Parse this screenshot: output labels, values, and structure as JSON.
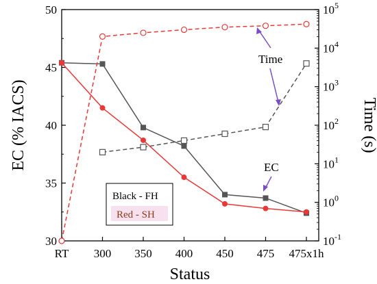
{
  "chart_data": {
    "type": "line",
    "categories": [
      "RT",
      "300",
      "350",
      "400",
      "450",
      "475",
      "475x1h"
    ],
    "xlabel": "Status",
    "ylabel": "EC (% IACS)",
    "y2label": "Time (s)",
    "ylim": [
      30,
      50
    ],
    "yticks": [
      30,
      35,
      40,
      45,
      50
    ],
    "y2scale": "log",
    "y2lim": [
      0.1,
      100000
    ],
    "y2ticks": [
      "10-1",
      "100",
      "101",
      "102",
      "103",
      "104",
      "105"
    ],
    "y2tick_exponents": [
      -1,
      0,
      1,
      2,
      3,
      4,
      5
    ],
    "grid": false,
    "series": [
      {
        "axis": "left",
        "color": "#555555",
        "marker": "filled-square",
        "dash": false,
        "values": [
          45.4,
          45.3,
          39.8,
          38.2,
          34.0,
          33.7,
          32.4
        ]
      },
      {
        "axis": "left",
        "color": "#e83838",
        "marker": "filled-circle",
        "dash": false,
        "values": [
          45.4,
          41.5,
          38.7,
          35.5,
          33.2,
          32.8,
          32.5
        ]
      },
      {
        "axis": "right",
        "color": "#e83838",
        "marker": "open-circle",
        "dash": true,
        "values": [
          0.1,
          20000,
          25000,
          30000,
          35000,
          38000,
          42000
        ]
      },
      {
        "axis": "right",
        "color": "#555555",
        "marker": "open-square",
        "dash": true,
        "values": [
          null,
          20,
          27,
          40,
          60,
          90,
          4000
        ]
      }
    ],
    "legend": {
      "position": "bottom-left",
      "entries": [
        {
          "label": "Black - FH",
          "color": "#000000"
        },
        {
          "label": "Red - SH",
          "color": "#8b3a1a"
        }
      ]
    },
    "annotations": [
      {
        "text": "Time"
      },
      {
        "text": "EC"
      }
    ]
  }
}
